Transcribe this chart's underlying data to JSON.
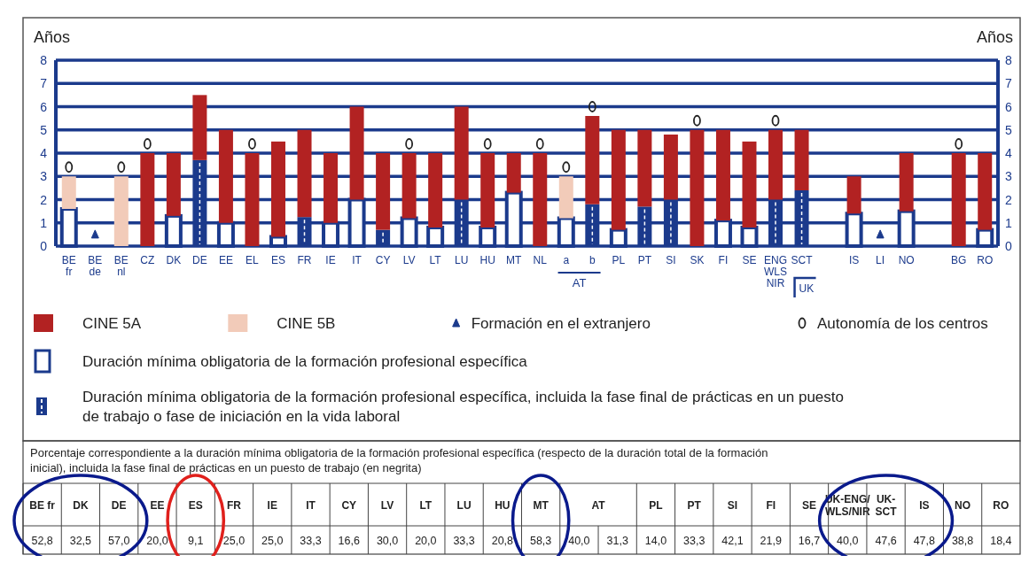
{
  "chart_data": [
    {
      "type": "bar",
      "stacked": true,
      "ylabel": "Años",
      "y2label": "Años",
      "ylim": [
        0,
        8
      ],
      "yticks": [
        0,
        1,
        2,
        3,
        4,
        5,
        6,
        7,
        8
      ],
      "y2lim": [
        0,
        8
      ],
      "y2ticks": [
        0,
        1,
        2,
        3,
        4,
        5,
        6,
        7,
        8
      ],
      "grid": "y",
      "legend": "bottom",
      "categories": [
        "BE fr",
        "BE de",
        "BE nl",
        "CZ",
        "DK",
        "DE",
        "EE",
        "EL",
        "ES",
        "FR",
        "IE",
        "IT",
        "CY",
        "LV",
        "LT",
        "LU",
        "HU",
        "MT",
        "NL",
        "a",
        "b",
        "PL",
        "PT",
        "SI",
        "SK",
        "FI",
        "SE",
        "ENG WLS NIR",
        "SCT",
        null,
        "IS",
        "LI",
        "NO",
        null,
        "BG",
        "RO"
      ],
      "annotations": [
        "AT",
        "UK"
      ],
      "series": [
        {
          "name": "Duración mínima obligatoria de la formación profesional específica",
          "type": "bar",
          "color": "#ffffff",
          "values": [
            1.6,
            null,
            null,
            null,
            1.3,
            null,
            1,
            null,
            0.4,
            null,
            1,
            2,
            null,
            1.2,
            0.8,
            null,
            0.8,
            2.3,
            null,
            1.2,
            null,
            0.7,
            null,
            null,
            null,
            1.1,
            0.8,
            null,
            null,
            null,
            1.4,
            null,
            1.5,
            null,
            null,
            0.7
          ]
        },
        {
          "name": "Duración mínima obligatoria de la formación profesional específica, incluida la fase final de prácticas en un puesto de trabajo o fase de iniciación en la vida laboral",
          "type": "bar",
          "color": "#1b3a8c",
          "values": [
            null,
            null,
            null,
            null,
            null,
            3.7,
            null,
            null,
            null,
            1.25,
            null,
            null,
            0.7,
            null,
            null,
            2,
            null,
            null,
            null,
            null,
            1.8,
            null,
            1.7,
            2,
            null,
            null,
            null,
            2,
            2.4,
            null,
            null,
            null,
            null,
            null,
            null,
            null
          ]
        },
        {
          "name": "CINE 5A",
          "type": "bar",
          "color": "#b22222",
          "values": [
            null,
            null,
            null,
            4,
            2.7,
            2.8,
            4,
            4,
            4.1,
            3.75,
            3,
            4,
            3.3,
            2.8,
            3.2,
            4,
            3.2,
            1.7,
            4,
            null,
            3.8,
            4.3,
            3.3,
            2.8,
            5,
            3.9,
            3.7,
            3,
            2.6,
            null,
            1.6,
            null,
            2.5,
            null,
            4,
            3.3
          ]
        },
        {
          "name": "CINE 5B",
          "type": "bar",
          "color": "#f2cbb9",
          "values": [
            1.4,
            null,
            3,
            null,
            null,
            null,
            null,
            null,
            null,
            null,
            null,
            null,
            null,
            null,
            null,
            null,
            null,
            null,
            null,
            1.8,
            null,
            null,
            null,
            null,
            null,
            null,
            null,
            null,
            null,
            null,
            null,
            null,
            null,
            null,
            null,
            null
          ]
        },
        {
          "name": "Formación en el extranjero",
          "type": "scatter",
          "marker": "triangle",
          "color": "#1b3a8c",
          "values": [
            null,
            0.5,
            null,
            null,
            null,
            null,
            null,
            null,
            null,
            null,
            null,
            null,
            null,
            null,
            null,
            null,
            null,
            null,
            null,
            null,
            null,
            null,
            null,
            null,
            null,
            null,
            null,
            null,
            null,
            null,
            null,
            0.5,
            null,
            null,
            null,
            null
          ]
        },
        {
          "name": "Autonomía de los centros",
          "type": "scatter",
          "marker": "circle",
          "color": "#222222",
          "values": [
            3.4,
            null,
            3.4,
            4.4,
            null,
            null,
            null,
            4.4,
            null,
            null,
            null,
            null,
            null,
            4.4,
            null,
            null,
            4.4,
            null,
            4.4,
            3.4,
            6,
            null,
            null,
            null,
            5.4,
            null,
            null,
            5.4,
            null,
            null,
            null,
            null,
            null,
            null,
            4.4,
            null
          ]
        }
      ]
    },
    {
      "type": "other",
      "title": "Porcentaje correspondiente a la duración mínima obligatoria de la formación profesional específica (respecto de la duración total de la formación inicial), incluida la fase final de prácticas en un puesto de trabajo (en negrita)",
      "categories": [
        "BE fr",
        "DK",
        "DE",
        "EE",
        "ES",
        "FR",
        "IE",
        "IT",
        "CY",
        "LV",
        "LT",
        "LU",
        "HU",
        "MT",
        "AT",
        null,
        "PL",
        "PT",
        "SI",
        "FI",
        "SE",
        "UK-ENG/WLS/NIR",
        "UK-SCT",
        "IS",
        "NO",
        "RO"
      ],
      "value_labels": [
        "52,8",
        "32,5",
        "57,0",
        "20,0",
        "9,1",
        "25,0",
        "25,0",
        "33,3",
        "16,6",
        "30,0",
        "20,0",
        "33,3",
        "20,8",
        "58,3",
        "40,0",
        "31,3",
        "14,0",
        "33,3",
        "42,1",
        "21,9",
        "16,7",
        "40,0",
        "47,6",
        "47,8",
        "38,8",
        "18,4"
      ]
    }
  ]
}
